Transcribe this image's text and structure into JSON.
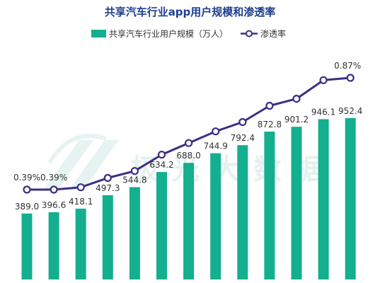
{
  "chart_data": {
    "type": "bar",
    "title": "共享汽车行业app用户规模和渗透率",
    "legend_position": "top",
    "grid": false,
    "categories": [
      "",
      "",
      "",
      "",
      "",
      "",
      "",
      "",
      "",
      "",
      "",
      "",
      ""
    ],
    "series": [
      {
        "name": "共享汽车行业用户规模（万人）",
        "type": "bar",
        "color": "#13af8f",
        "values": [
          389.0,
          396.6,
          418.1,
          497.3,
          544.8,
          634.2,
          688.0,
          744.9,
          792.4,
          872.8,
          901.2,
          946.1,
          952.4
        ],
        "labels": [
          "389.0",
          "396.6",
          "418.1",
          "497.3",
          "544.8",
          "634.2",
          "688.0",
          "744.9",
          "792.4",
          "872.8",
          "901.2",
          "946.1",
          "952.4"
        ]
      },
      {
        "name": "渗透率",
        "type": "line",
        "color": "#3c2f85",
        "marker": "hollow-circle",
        "values": [
          0.39,
          0.39,
          0.4,
          0.44,
          0.47,
          0.54,
          0.59,
          0.64,
          0.68,
          0.75,
          0.78,
          0.86,
          0.87
        ],
        "labels": [
          "0.39%",
          "0.39%",
          "",
          "",
          "",
          "",
          "",
          "",
          "",
          "",
          "",
          "",
          "0.87%"
        ]
      }
    ],
    "bar_ylim": [
      0,
      1000
    ],
    "line_ylim": [
      0,
      1
    ]
  },
  "watermark": {
    "text": "极光大数据",
    "color": "#cfe9e2"
  }
}
